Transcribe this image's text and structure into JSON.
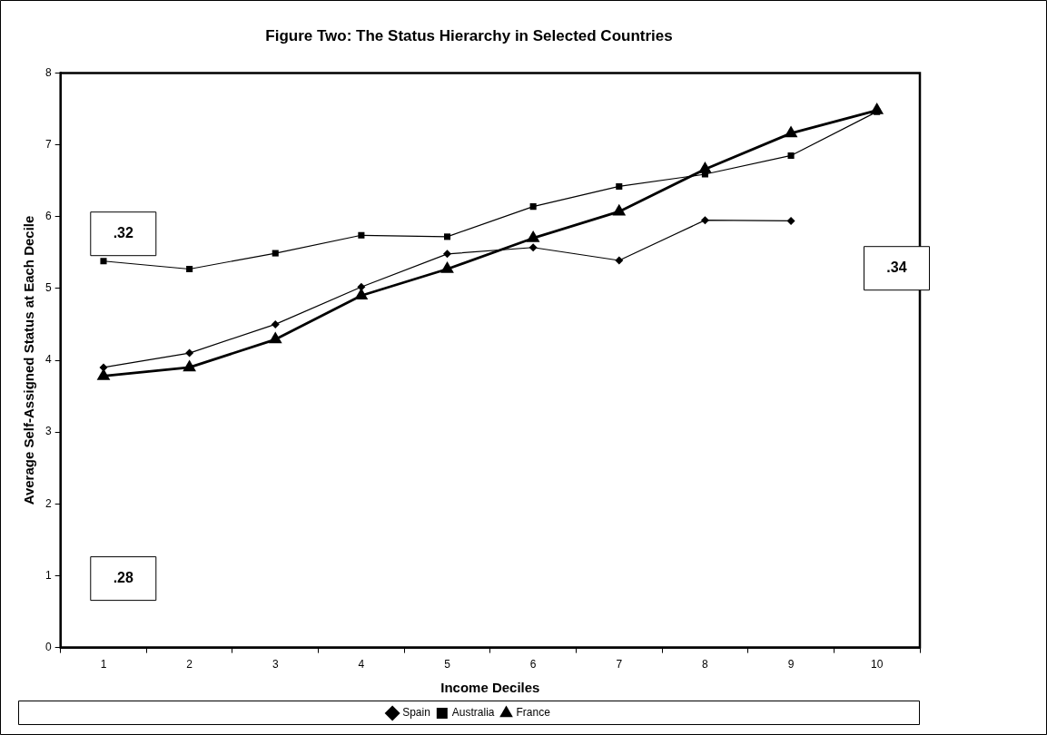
{
  "chart_data": {
    "type": "line",
    "title": "Figure Two: The Status Hierarchy in Selected Countries",
    "xlabel": "Income Deciles",
    "ylabel": "Average Self-Assigned Status at Each Decile",
    "categories": [
      "1",
      "2",
      "3",
      "4",
      "5",
      "6",
      "7",
      "8",
      "9",
      "10"
    ],
    "series": [
      {
        "name": "Spain",
        "color": "#000000",
        "marker": "diamond",
        "values": [
          3.9,
          4.1,
          4.5,
          5.02,
          5.48,
          5.57,
          5.39,
          5.95,
          5.94,
          null
        ]
      },
      {
        "name": "Australia",
        "color": "#000000",
        "marker": "square",
        "values": [
          5.38,
          5.27,
          5.49,
          5.74,
          5.72,
          6.14,
          6.42,
          6.59,
          6.85,
          7.46
        ]
      },
      {
        "name": "France",
        "color": "#000000",
        "marker": "triangle",
        "values": [
          3.78,
          3.9,
          4.29,
          4.9,
          5.27,
          5.7,
          6.07,
          6.66,
          7.16,
          7.48
        ]
      }
    ],
    "ylim": [
      0,
      8
    ],
    "yticks": [
      0,
      1,
      2,
      3,
      4,
      5,
      6,
      7,
      8
    ],
    "grid": false,
    "legend": "bottom",
    "line_style": "solid",
    "annotations": [
      ".32",
      ".28",
      ".34"
    ]
  }
}
